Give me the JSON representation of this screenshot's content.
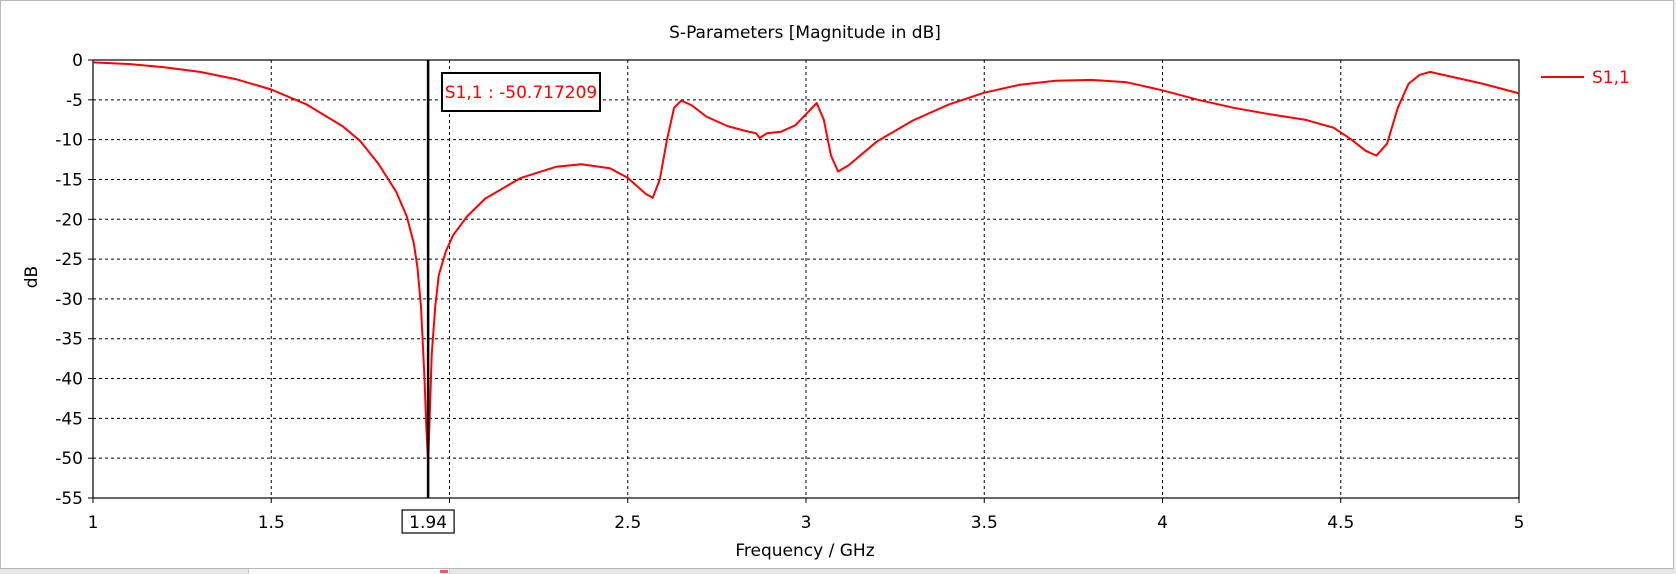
{
  "chart_data": {
    "type": "line",
    "title": "S-Parameters [Magnitude in dB]",
    "xlabel": "Frequency / GHz",
    "ylabel": "dB",
    "xlim": [
      1,
      5
    ],
    "ylim": [
      -55,
      0
    ],
    "grid": true,
    "legend_position": "top-right",
    "x_ticks": [
      {
        "v": 1,
        "label": "1"
      },
      {
        "v": 1.5,
        "label": "1.5"
      },
      {
        "v": 2,
        "label": ""
      },
      {
        "v": 2.5,
        "label": "2.5"
      },
      {
        "v": 3,
        "label": "3"
      },
      {
        "v": 3.5,
        "label": "3.5"
      },
      {
        "v": 4,
        "label": "4"
      },
      {
        "v": 4.5,
        "label": "4.5"
      },
      {
        "v": 5,
        "label": "5"
      }
    ],
    "y_ticks": [
      {
        "v": 0,
        "label": "0"
      },
      {
        "v": -5,
        "label": "-5"
      },
      {
        "v": -10,
        "label": "-10"
      },
      {
        "v": -15,
        "label": "-15"
      },
      {
        "v": -20,
        "label": "-20"
      },
      {
        "v": -25,
        "label": "-25"
      },
      {
        "v": -30,
        "label": "-30"
      },
      {
        "v": -35,
        "label": "-35"
      },
      {
        "v": -40,
        "label": "-40"
      },
      {
        "v": -45,
        "label": "-45"
      },
      {
        "v": -50,
        "label": "-50"
      },
      {
        "v": -55,
        "label": "-55"
      }
    ],
    "series": [
      {
        "name": "S1,1",
        "color": "#ff0000",
        "points": [
          [
            1.0,
            -0.3
          ],
          [
            1.1,
            -0.5
          ],
          [
            1.2,
            -0.9
          ],
          [
            1.3,
            -1.5
          ],
          [
            1.4,
            -2.4
          ],
          [
            1.5,
            -3.7
          ],
          [
            1.6,
            -5.6
          ],
          [
            1.7,
            -8.3
          ],
          [
            1.75,
            -10.2
          ],
          [
            1.8,
            -13.0
          ],
          [
            1.85,
            -16.5
          ],
          [
            1.88,
            -19.6
          ],
          [
            1.9,
            -23.0
          ],
          [
            1.91,
            -26.0
          ],
          [
            1.92,
            -31.0
          ],
          [
            1.93,
            -40.0
          ],
          [
            1.935,
            -46.0
          ],
          [
            1.94,
            -50.7
          ],
          [
            1.945,
            -44.0
          ],
          [
            1.95,
            -37.0
          ],
          [
            1.96,
            -31.0
          ],
          [
            1.97,
            -27.0
          ],
          [
            1.99,
            -24.0
          ],
          [
            2.01,
            -22.0
          ],
          [
            2.05,
            -19.6
          ],
          [
            2.1,
            -17.4
          ],
          [
            2.2,
            -14.8
          ],
          [
            2.3,
            -13.4
          ],
          [
            2.37,
            -13.1
          ],
          [
            2.45,
            -13.6
          ],
          [
            2.5,
            -14.8
          ],
          [
            2.55,
            -16.8
          ],
          [
            2.57,
            -17.3
          ],
          [
            2.59,
            -15.0
          ],
          [
            2.61,
            -10.0
          ],
          [
            2.63,
            -6.0
          ],
          [
            2.65,
            -5.1
          ],
          [
            2.68,
            -5.7
          ],
          [
            2.72,
            -7.1
          ],
          [
            2.78,
            -8.3
          ],
          [
            2.83,
            -8.9
          ],
          [
            2.86,
            -9.2
          ],
          [
            2.87,
            -9.8
          ],
          [
            2.89,
            -9.2
          ],
          [
            2.93,
            -9.0
          ],
          [
            2.97,
            -8.2
          ],
          [
            3.0,
            -6.8
          ],
          [
            3.03,
            -5.4
          ],
          [
            3.05,
            -7.5
          ],
          [
            3.07,
            -12.0
          ],
          [
            3.09,
            -14.0
          ],
          [
            3.12,
            -13.2
          ],
          [
            3.2,
            -10.2
          ],
          [
            3.3,
            -7.6
          ],
          [
            3.4,
            -5.6
          ],
          [
            3.5,
            -4.1
          ],
          [
            3.6,
            -3.1
          ],
          [
            3.7,
            -2.6
          ],
          [
            3.8,
            -2.5
          ],
          [
            3.9,
            -2.8
          ],
          [
            4.0,
            -3.8
          ],
          [
            4.1,
            -5.0
          ],
          [
            4.2,
            -6.0
          ],
          [
            4.3,
            -6.8
          ],
          [
            4.4,
            -7.5
          ],
          [
            4.48,
            -8.5
          ],
          [
            4.53,
            -10.0
          ],
          [
            4.57,
            -11.4
          ],
          [
            4.6,
            -12.0
          ],
          [
            4.63,
            -10.5
          ],
          [
            4.66,
            -6.0
          ],
          [
            4.69,
            -3.0
          ],
          [
            4.72,
            -1.9
          ],
          [
            4.75,
            -1.5
          ],
          [
            4.8,
            -2.0
          ],
          [
            4.9,
            -3.0
          ],
          [
            5.0,
            -4.2
          ]
        ]
      }
    ],
    "marker": {
      "x": 1.94,
      "x_label": "1.94",
      "annotation": "S1,1 : -50.717209"
    }
  }
}
